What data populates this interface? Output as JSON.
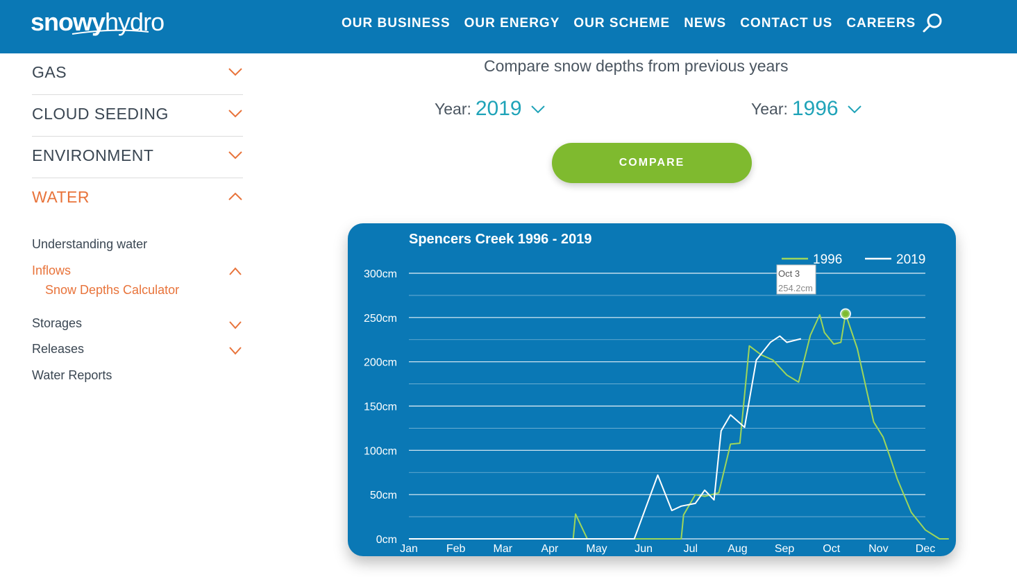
{
  "header": {
    "logo_bold": "snowy",
    "logo_light": "hydro",
    "nav": [
      "OUR BUSINESS",
      "OUR ENERGY",
      "OUR SCHEME",
      "NEWS",
      "CONTACT US",
      "CAREERS"
    ],
    "search_icon": "search-icon"
  },
  "sidebar": {
    "sections": [
      {
        "label": "GAS",
        "expanded": false
      },
      {
        "label": "CLOUD SEEDING",
        "expanded": false
      },
      {
        "label": "ENVIRONMENT",
        "expanded": false
      },
      {
        "label": "WATER",
        "expanded": true
      }
    ],
    "water_items": {
      "understanding": "Understanding water",
      "inflows": "Inflows",
      "snow_depths": "Snow Depths Calculator",
      "storages": "Storages",
      "releases": "Releases",
      "reports": "Water Reports"
    }
  },
  "compare": {
    "title": "Compare snow depths from previous years",
    "year_label": "Year:",
    "year_a": "2019",
    "year_b": "1996",
    "button": "COMPARE"
  },
  "colors": {
    "brand_blue": "#0a78b5",
    "accent_orange": "#e8733a",
    "teal": "#1fa3b8",
    "green": "#7fba2f",
    "series_1996": "#9fd65a",
    "series_2019": "#ffffff"
  },
  "chart_data": {
    "type": "line",
    "title": "Spencers Creek 1996 - 2019",
    "xlabel": "",
    "ylabel": "",
    "ylim": [
      0,
      300
    ],
    "yticks": [
      "0cm",
      "50cm",
      "100cm",
      "150cm",
      "200cm",
      "250cm",
      "300cm"
    ],
    "ytick_values": [
      0,
      50,
      100,
      150,
      200,
      250,
      300
    ],
    "xticks": [
      "Jan",
      "Feb",
      "Mar",
      "Apr",
      "May",
      "Jun",
      "Jul",
      "Aug",
      "Sep",
      "Oct",
      "Nov",
      "Dec"
    ],
    "x_unit": "month index (0 = Jan 1, 11 = Dec 1)",
    "grid": true,
    "legend": "top-right",
    "series": [
      {
        "name": "1996",
        "color": "#9fd65a",
        "points": [
          [
            0,
            0
          ],
          [
            3.5,
            0
          ],
          [
            3.55,
            28
          ],
          [
            3.8,
            0
          ],
          [
            5.8,
            0
          ],
          [
            5.85,
            27
          ],
          [
            6.1,
            50
          ],
          [
            6.3,
            48
          ],
          [
            6.6,
            52
          ],
          [
            6.85,
            107
          ],
          [
            7.05,
            108
          ],
          [
            7.25,
            218
          ],
          [
            7.5,
            208
          ],
          [
            7.75,
            202
          ],
          [
            8.05,
            185
          ],
          [
            8.3,
            177
          ],
          [
            8.55,
            230
          ],
          [
            8.75,
            253
          ],
          [
            8.85,
            233
          ],
          [
            9.05,
            220
          ],
          [
            9.2,
            222
          ],
          [
            9.3,
            254.2
          ],
          [
            9.55,
            215
          ],
          [
            9.9,
            132
          ],
          [
            10.1,
            115
          ],
          [
            10.25,
            92
          ],
          [
            10.4,
            68
          ],
          [
            10.7,
            30
          ],
          [
            11.0,
            10
          ],
          [
            11.3,
            0
          ],
          [
            11.5,
            0
          ]
        ]
      },
      {
        "name": "2019",
        "color": "#ffffff",
        "points": [
          [
            0,
            0
          ],
          [
            4.8,
            0
          ],
          [
            5.3,
            72
          ],
          [
            5.6,
            32
          ],
          [
            5.8,
            37
          ],
          [
            6.1,
            40
          ],
          [
            6.3,
            55
          ],
          [
            6.5,
            44
          ],
          [
            6.65,
            122
          ],
          [
            6.85,
            140
          ],
          [
            7.15,
            126
          ],
          [
            7.4,
            202
          ],
          [
            7.7,
            222
          ],
          [
            7.9,
            229
          ],
          [
            8.05,
            222
          ],
          [
            8.35,
            226
          ]
        ]
      }
    ],
    "tooltip": {
      "date": "Oct 3",
      "value": "254.2cm",
      "x": 9.3,
      "y": 254.2
    }
  }
}
